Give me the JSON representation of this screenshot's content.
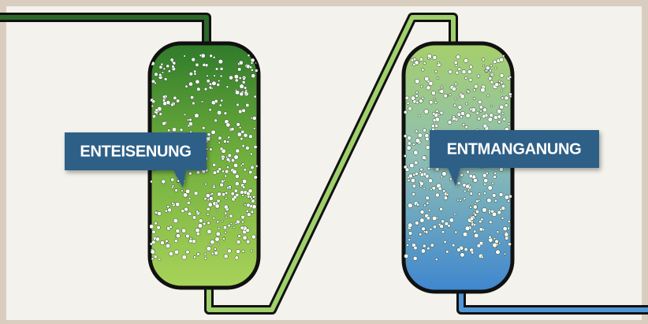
{
  "tanks": [
    {
      "label": "ENTEISENUNG"
    },
    {
      "label": "ENTMANGANUNG"
    }
  ]
}
